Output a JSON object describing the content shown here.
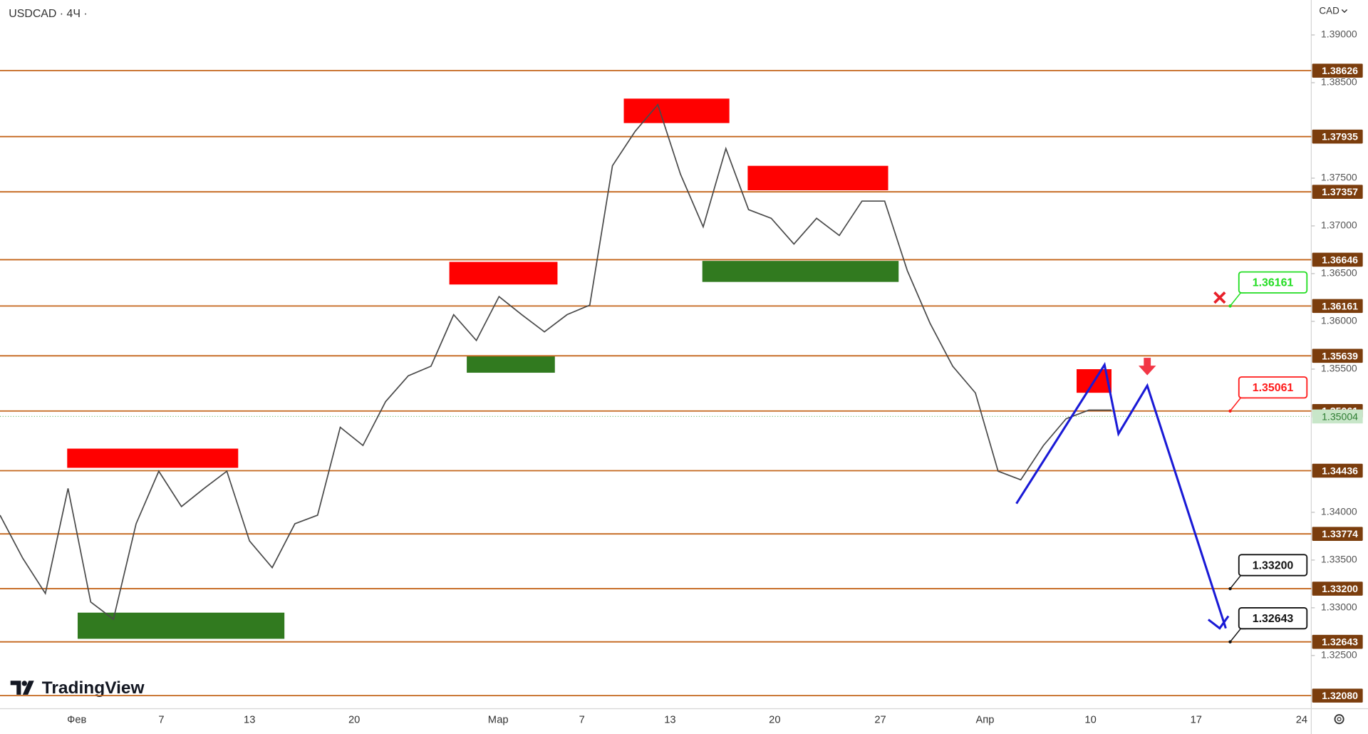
{
  "header": {
    "symbol": "USDCAD · 4Ч ·",
    "currency": "CAD"
  },
  "chart_data": {
    "type": "line",
    "ylim": [
      1.31943,
      1.39366
    ],
    "yticks": [
      {
        "value": 1.39,
        "label": "1.39000"
      },
      {
        "value": 1.385,
        "label": "1.38500"
      },
      {
        "value": 1.375,
        "label": "1.37500"
      },
      {
        "value": 1.37,
        "label": "1.37000"
      },
      {
        "value": 1.365,
        "label": "1.36500"
      },
      {
        "value": 1.36,
        "label": "1.36000"
      },
      {
        "value": 1.355,
        "label": "1.35500"
      },
      {
        "value": 1.34,
        "label": "1.34000"
      },
      {
        "value": 1.335,
        "label": "1.33500"
      },
      {
        "value": 1.33,
        "label": "1.33000"
      },
      {
        "value": 1.325,
        "label": "1.32500"
      }
    ],
    "time_labels": [
      "Фев",
      "7",
      "13",
      "20",
      "Мар",
      "7",
      "13",
      "20",
      "27",
      "Апр",
      "10",
      "17",
      "24"
    ],
    "price": {
      "color": "#4a4a4a",
      "values": [
        1.3397,
        1.3352,
        1.3315,
        1.3425,
        1.3306,
        1.3288,
        1.3388,
        1.3443,
        1.3406,
        1.3425,
        1.3443,
        1.337,
        1.3342,
        1.3388,
        1.3397,
        1.3489,
        1.347,
        1.3516,
        1.3543,
        1.3553,
        1.3607,
        1.358,
        1.3626,
        1.3607,
        1.3589,
        1.3607,
        1.3617,
        1.3763,
        1.3799,
        1.3827,
        1.3754,
        1.3699,
        1.3781,
        1.3717,
        1.3708,
        1.3681,
        1.3708,
        1.369,
        1.3726,
        1.3726,
        1.3653,
        1.3598,
        1.3553,
        1.3525,
        1.3443,
        1.3434,
        1.347,
        1.3498,
        1.3507,
        1.3507
      ]
    },
    "levels": {
      "color": "#c4661c",
      "values": [
        1.38626,
        1.37935,
        1.37357,
        1.36646,
        1.36161,
        1.35639,
        1.35061,
        1.34436,
        1.33774,
        {
          "value": 1.332,
          "label": "1.33200"
        },
        1.32643,
        {
          "value": 1.3208,
          "label": "1.32080"
        }
      ]
    },
    "current_price": {
      "value": 1.35004,
      "color": "#2e7d32"
    },
    "zones": [
      {
        "color": "#ff0000",
        "top": 1.34667,
        "bottom": 1.34466
      },
      {
        "color": "#ff0000",
        "top": 1.36623,
        "bottom": 1.36386
      },
      {
        "color": "#ff0000",
        "top": 1.38333,
        "bottom": 1.38077
      },
      {
        "color": "#ff0000",
        "top": 1.37629,
        "bottom": 1.37373
      },
      {
        "color": "#ff0000",
        "top": 1.35499,
        "bottom": 1.35252
      },
      {
        "color": "#317a1f",
        "top": 1.32949,
        "bottom": 1.32675
      },
      {
        "color": "#317a1f",
        "top": 1.35636,
        "bottom": 1.35462
      },
      {
        "color": "#317a1f",
        "top": 1.36633,
        "bottom": 1.36413
      }
    ],
    "forecast": {
      "color": "#1a1ad6",
      "values": [
        1.34091,
        1.35545,
        1.34823,
        1.35326,
        1.32785
      ]
    },
    "callouts": [
      {
        "value": 1.36161,
        "label": "1.36161",
        "color": "#22dd22"
      },
      {
        "value": 1.35061,
        "label": "1.35061",
        "color": "#ff1a1a"
      },
      {
        "value": 1.332,
        "label": "1.33200",
        "color": "#111111"
      },
      {
        "value": 1.32643,
        "label": "1.32643",
        "color": "#111111"
      }
    ]
  },
  "brand": "TradingView"
}
